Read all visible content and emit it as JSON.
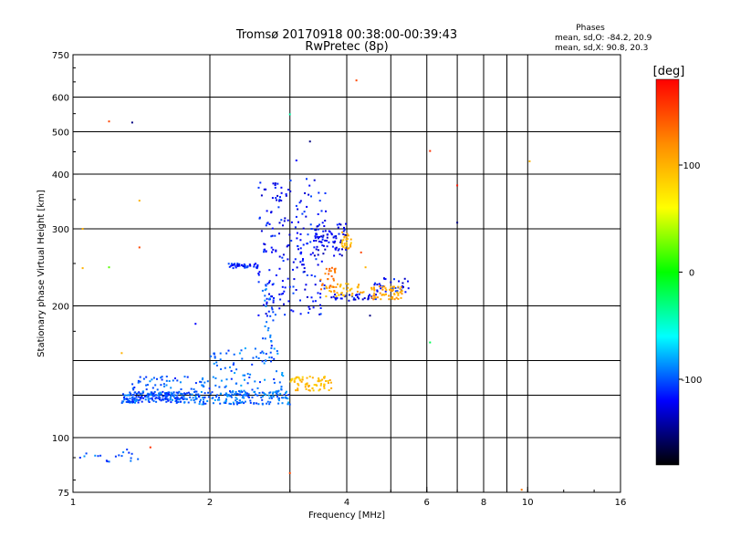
{
  "chart_data": {
    "type": "scatter",
    "title": "Tromsø 20170918 00:38:00-00:39:43",
    "subtitle": "RwPretec (8p)",
    "phase_box": {
      "heading": "Phases",
      "line_o": "mean, sd,O: -84.2, 20.9",
      "line_x": "mean, sd,X:  90.8, 20.3"
    },
    "xlabel": "Frequency [MHz]",
    "ylabel": "Stationary phase Virtual Height [km]",
    "x_scale": "log",
    "y_scale": "log",
    "xlim": [
      1,
      16
    ],
    "ylim": [
      75,
      750
    ],
    "x_ticks": [
      1,
      2,
      4,
      6,
      8,
      10,
      16
    ],
    "x_tick_labels": [
      "1",
      "2",
      "4",
      "6",
      "8",
      "10",
      "16"
    ],
    "x_minor_ticks": [
      3,
      5,
      7,
      9
    ],
    "y_ticks": [
      75,
      100,
      200,
      300,
      400,
      500,
      600,
      750
    ],
    "y_tick_labels": [
      "75",
      "100",
      "200",
      "300",
      "400",
      "500",
      "600",
      "750"
    ],
    "y_minor_ticks": [
      125,
      150
    ],
    "grid": true,
    "colorbar": {
      "label": "[deg]",
      "range": [
        -180,
        180
      ],
      "tick_values": [
        100,
        0,
        -100
      ],
      "tick_labels": [
        "100",
        "0",
        "-100"
      ],
      "gradient": [
        "#ff0000",
        "#ff8c00",
        "#ffff00",
        "#00ff00",
        "#00ffff",
        "#0000ff",
        "#000000"
      ]
    },
    "point_clusters": [
      {
        "phase": -100,
        "x": [
          1.28,
          1.8
        ],
        "y": [
          120,
          127
        ],
        "count": 180
      },
      {
        "phase": -95,
        "x": [
          1.8,
          3.0
        ],
        "y": [
          119,
          128
        ],
        "count": 160
      },
      {
        "phase": -100,
        "x": [
          1.35,
          2.0
        ],
        "y": [
          122,
          138
        ],
        "count": 80
      },
      {
        "phase": -95,
        "x": [
          2.0,
          2.9
        ],
        "y": [
          124,
          160
        ],
        "count": 90
      },
      {
        "phase": -100,
        "x": [
          2.6,
          2.8
        ],
        "y": [
          150,
          225
        ],
        "count": 35
      },
      {
        "phase": -115,
        "x": [
          2.2,
          2.55
        ],
        "y": [
          244,
          250
        ],
        "count": 40
      },
      {
        "phase": -118,
        "x": [
          2.55,
          3.6
        ],
        "y": [
          190,
          390
        ],
        "count": 210
      },
      {
        "phase": -125,
        "x": [
          3.4,
          4.0
        ],
        "y": [
          260,
          310
        ],
        "count": 70
      },
      {
        "phase": -122,
        "x": [
          3.7,
          4.7
        ],
        "y": [
          205,
          213
        ],
        "count": 40
      },
      {
        "phase": -120,
        "x": [
          4.6,
          5.5
        ],
        "y": [
          215,
          232
        ],
        "count": 30
      },
      {
        "phase": 95,
        "x": [
          3.0,
          3.7
        ],
        "y": [
          128,
          138
        ],
        "count": 70
      },
      {
        "phase": 100,
        "x": [
          3.6,
          4.4
        ],
        "y": [
          210,
          225
        ],
        "count": 40
      },
      {
        "phase": 110,
        "x": [
          4.5,
          5.3
        ],
        "y": [
          207,
          222
        ],
        "count": 60
      },
      {
        "phase": 100,
        "x": [
          3.9,
          4.1
        ],
        "y": [
          270,
          295
        ],
        "count": 25
      },
      {
        "phase": 130,
        "x": [
          3.5,
          3.8
        ],
        "y": [
          215,
          245
        ],
        "count": 25
      },
      {
        "phase": -100,
        "x": [
          1.0,
          1.4
        ],
        "y": [
          88,
          94
        ],
        "count": 18
      }
    ],
    "sparse_points": [
      {
        "x": 1.07,
        "y": 92,
        "phase": -105
      },
      {
        "x": 1.2,
        "y": 528,
        "phase": 150
      },
      {
        "x": 1.35,
        "y": 525,
        "phase": -150
      },
      {
        "x": 1.2,
        "y": 245,
        "phase": 20
      },
      {
        "x": 1.05,
        "y": 244,
        "phase": 100
      },
      {
        "x": 1.4,
        "y": 348,
        "phase": 100
      },
      {
        "x": 1.4,
        "y": 272,
        "phase": 150
      },
      {
        "x": 1.28,
        "y": 156,
        "phase": 100
      },
      {
        "x": 1.48,
        "y": 95,
        "phase": 160
      },
      {
        "x": 1.05,
        "y": 300,
        "phase": 100
      },
      {
        "x": 1.86,
        "y": 182,
        "phase": -120
      },
      {
        "x": 3.0,
        "y": 548,
        "phase": -40
      },
      {
        "x": 3.32,
        "y": 475,
        "phase": -150
      },
      {
        "x": 4.2,
        "y": 655,
        "phase": 150
      },
      {
        "x": 6.1,
        "y": 452,
        "phase": 160
      },
      {
        "x": 6.1,
        "y": 165,
        "phase": -20
      },
      {
        "x": 7.0,
        "y": 377,
        "phase": 170
      },
      {
        "x": 7.0,
        "y": 310,
        "phase": -150
      },
      {
        "x": 10.1,
        "y": 428,
        "phase": 100
      },
      {
        "x": 9.7,
        "y": 76,
        "phase": 130
      },
      {
        "x": 3.0,
        "y": 83,
        "phase": 150
      },
      {
        "x": 3.1,
        "y": 430,
        "phase": -120
      },
      {
        "x": 4.3,
        "y": 265,
        "phase": 150
      },
      {
        "x": 4.4,
        "y": 245,
        "phase": 100
      },
      {
        "x": 4.5,
        "y": 190,
        "phase": -150
      }
    ]
  }
}
